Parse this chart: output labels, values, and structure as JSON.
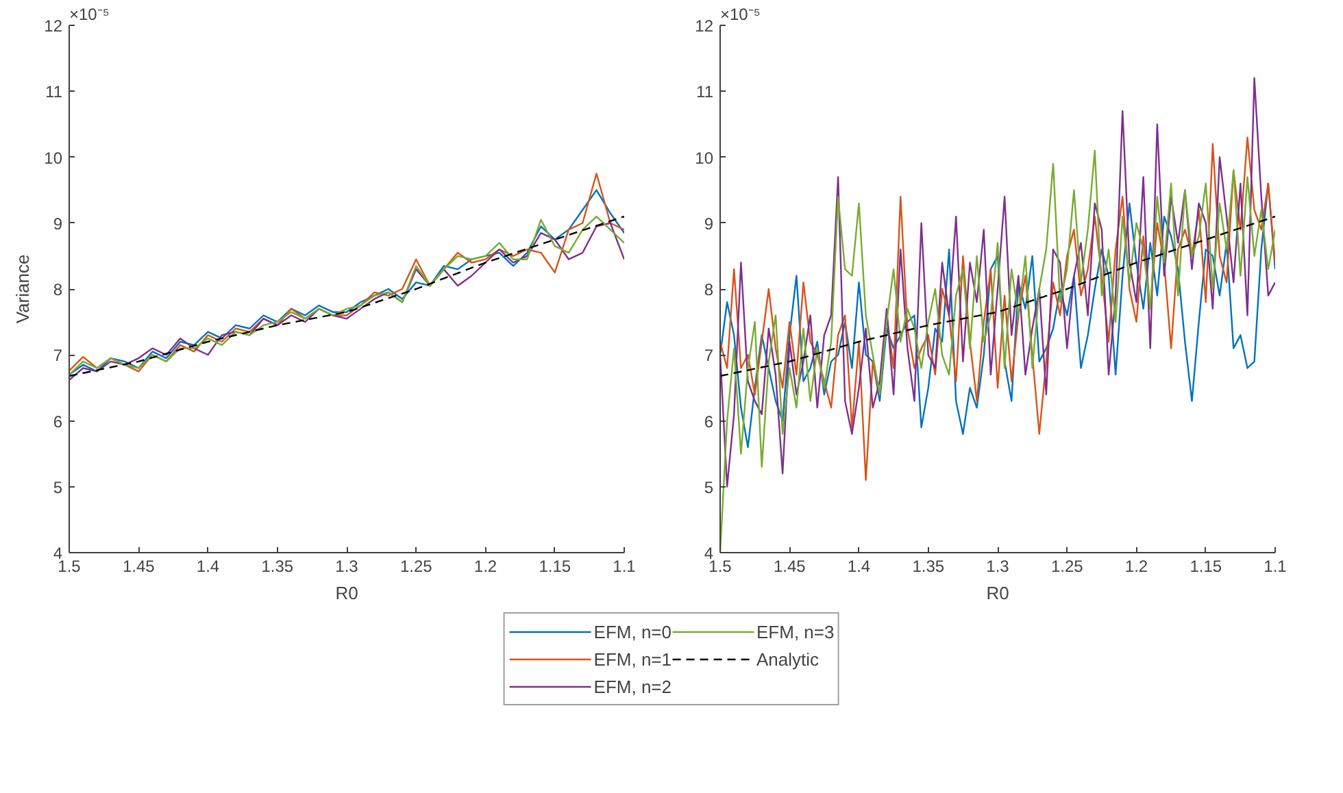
{
  "chart_data": [
    {
      "type": "line",
      "ylabel": "Variance",
      "xlabel": "R0",
      "xlim": [
        1.5,
        1.1
      ],
      "xticks": [
        1.5,
        1.45,
        1.4,
        1.35,
        1.3,
        1.25,
        1.2,
        1.15,
        1.1
      ],
      "ylim": [
        4,
        12
      ],
      "yticks": [
        4,
        5,
        6,
        7,
        8,
        9,
        10,
        11,
        12
      ],
      "annotations": [
        "×10⁻⁵"
      ],
      "grid": false,
      "legend": "bottom",
      "marker": "none",
      "x": [
        1.5,
        1.49,
        1.48,
        1.47,
        1.46,
        1.45,
        1.44,
        1.43,
        1.42,
        1.41,
        1.4,
        1.39,
        1.38,
        1.37,
        1.36,
        1.35,
        1.34,
        1.33,
        1.32,
        1.31,
        1.3,
        1.29,
        1.28,
        1.27,
        1.26,
        1.25,
        1.24,
        1.23,
        1.22,
        1.21,
        1.2,
        1.19,
        1.18,
        1.17,
        1.16,
        1.15,
        1.14,
        1.13,
        1.12,
        1.11,
        1.1
      ],
      "series": [
        {
          "name": "EFM, n=0",
          "color": "#0072bd",
          "values": [
            6.7,
            6.85,
            6.75,
            6.95,
            6.9,
            6.8,
            7.05,
            6.95,
            7.2,
            7.15,
            7.35,
            7.25,
            7.45,
            7.4,
            7.6,
            7.5,
            7.7,
            7.6,
            7.75,
            7.65,
            7.65,
            7.8,
            7.9,
            8.0,
            7.85,
            8.1,
            8.05,
            8.35,
            8.3,
            8.45,
            8.5,
            8.55,
            8.35,
            8.55,
            8.95,
            8.75,
            8.9,
            9.2,
            9.5,
            9.15,
            8.85
          ]
        },
        {
          "name": "EFM, n=1",
          "color": "#d95319",
          "values": [
            6.76,
            6.97,
            6.8,
            6.95,
            6.85,
            6.75,
            7.0,
            6.9,
            7.15,
            7.05,
            7.3,
            7.2,
            7.4,
            7.35,
            7.55,
            7.45,
            7.7,
            7.55,
            7.7,
            7.6,
            7.6,
            7.75,
            7.95,
            7.9,
            8.0,
            8.45,
            8.05,
            8.3,
            8.55,
            8.4,
            8.45,
            8.6,
            8.5,
            8.6,
            8.55,
            8.25,
            8.9,
            9.0,
            9.75,
            9.0,
            8.9
          ]
        },
        {
          "name": "EFM, n=2",
          "color": "#7e2f8e",
          "values": [
            6.62,
            6.8,
            6.75,
            6.9,
            6.85,
            6.95,
            7.1,
            7.0,
            7.25,
            7.1,
            7.0,
            7.3,
            7.35,
            7.3,
            7.55,
            7.45,
            7.6,
            7.5,
            7.7,
            7.6,
            7.55,
            7.7,
            7.85,
            7.95,
            7.8,
            8.3,
            8.05,
            8.3,
            8.05,
            8.2,
            8.4,
            8.6,
            8.4,
            8.5,
            8.85,
            8.75,
            8.45,
            8.55,
            8.95,
            9.0,
            8.45
          ]
        },
        {
          "name": "EFM, n=3",
          "color": "#77ac30",
          "values": [
            6.7,
            6.9,
            6.8,
            6.95,
            6.85,
            6.8,
            7.0,
            6.9,
            7.1,
            7.1,
            7.25,
            7.15,
            7.35,
            7.3,
            7.45,
            7.5,
            7.65,
            7.55,
            7.7,
            7.6,
            7.7,
            7.75,
            7.9,
            7.95,
            7.8,
            8.35,
            8.05,
            8.3,
            8.5,
            8.45,
            8.5,
            8.7,
            8.45,
            8.45,
            9.05,
            8.65,
            8.55,
            8.9,
            9.1,
            8.9,
            8.7
          ]
        },
        {
          "name": "Analytic",
          "color": "#000000",
          "line_style": "dashed",
          "x": [
            1.5,
            1.45,
            1.4,
            1.35,
            1.3,
            1.25,
            1.2,
            1.15,
            1.1
          ],
          "values": [
            6.68,
            6.9,
            7.2,
            7.45,
            7.65,
            8.0,
            8.4,
            8.75,
            9.1
          ]
        }
      ]
    },
    {
      "type": "line",
      "xlabel": "R0",
      "xlim": [
        1.5,
        1.1
      ],
      "xticks": [
        1.5,
        1.45,
        1.4,
        1.35,
        1.3,
        1.25,
        1.2,
        1.15,
        1.1
      ],
      "ylim": [
        4,
        12
      ],
      "yticks": [
        4,
        5,
        6,
        7,
        8,
        9,
        10,
        11,
        12
      ],
      "annotations": [
        "×10⁻⁵"
      ],
      "grid": false,
      "marker": "none",
      "x": [
        1.5,
        1.495,
        1.49,
        1.485,
        1.48,
        1.475,
        1.47,
        1.465,
        1.46,
        1.455,
        1.45,
        1.445,
        1.44,
        1.435,
        1.43,
        1.425,
        1.42,
        1.415,
        1.41,
        1.405,
        1.4,
        1.395,
        1.39,
        1.385,
        1.38,
        1.375,
        1.37,
        1.365,
        1.36,
        1.355,
        1.35,
        1.345,
        1.34,
        1.335,
        1.33,
        1.325,
        1.32,
        1.315,
        1.31,
        1.305,
        1.3,
        1.295,
        1.29,
        1.285,
        1.28,
        1.275,
        1.27,
        1.265,
        1.26,
        1.255,
        1.25,
        1.245,
        1.24,
        1.235,
        1.23,
        1.225,
        1.22,
        1.215,
        1.21,
        1.205,
        1.2,
        1.195,
        1.19,
        1.185,
        1.18,
        1.175,
        1.17,
        1.165,
        1.16,
        1.155,
        1.15,
        1.145,
        1.14,
        1.135,
        1.13,
        1.125,
        1.12,
        1.115,
        1.11,
        1.105,
        1.1
      ],
      "series": [
        {
          "color": "#0072bd",
          "values": [
            7.0,
            7.8,
            7.3,
            6.2,
            5.6,
            6.5,
            7.3,
            6.8,
            6.3,
            6.0,
            7.3,
            8.2,
            6.6,
            6.8,
            7.2,
            6.4,
            6.9,
            7.0,
            7.5,
            6.8,
            8.1,
            7.0,
            6.9,
            6.3,
            7.4,
            7.1,
            7.3,
            7.5,
            7.6,
            5.9,
            6.5,
            7.4,
            7.2,
            8.6,
            6.3,
            5.8,
            6.5,
            6.2,
            7.0,
            8.3,
            8.5,
            6.9,
            6.3,
            8.1,
            7.7,
            8.5,
            6.9,
            7.1,
            7.4,
            8.0,
            7.6,
            8.2,
            6.8,
            7.3,
            8.0,
            8.6,
            8.2,
            6.7,
            8.2,
            9.3,
            8.4,
            7.7,
            8.7,
            7.9,
            9.1,
            8.8,
            8.3,
            7.2,
            6.3,
            7.5,
            8.6,
            8.5,
            7.9,
            8.7,
            7.1,
            7.3,
            6.8,
            6.9,
            8.6,
            9.6,
            8.3
          ]
        },
        {
          "color": "#d95319",
          "values": [
            7.2,
            6.8,
            8.3,
            6.8,
            7.0,
            6.4,
            7.2,
            8.0,
            7.1,
            6.5,
            7.5,
            6.7,
            8.1,
            7.2,
            7.0,
            6.6,
            6.2,
            7.3,
            7.6,
            5.9,
            7.2,
            5.1,
            6.9,
            6.4,
            7.6,
            6.8,
            9.4,
            7.4,
            6.8,
            7.1,
            7.3,
            6.7,
            8.0,
            7.6,
            6.6,
            8.5,
            7.2,
            6.3,
            7.5,
            8.3,
            6.5,
            7.9,
            6.6,
            7.6,
            8.2,
            7.0,
            5.8,
            6.9,
            8.1,
            7.6,
            8.5,
            8.9,
            7.9,
            8.3,
            9.1,
            8.2,
            7.2,
            8.6,
            9.4,
            8.0,
            7.5,
            8.8,
            7.7,
            9.0,
            8.4,
            7.1,
            8.6,
            8.9,
            8.5,
            9.2,
            7.8,
            10.2,
            8.5,
            8.1,
            9.8,
            8.9,
            10.3,
            9.2,
            8.9,
            9.6,
            8.4
          ]
        },
        {
          "color": "#7e2f8e",
          "values": [
            7.0,
            5.0,
            6.1,
            8.4,
            6.6,
            6.3,
            6.1,
            7.4,
            6.7,
            5.2,
            7.2,
            6.4,
            6.9,
            7.6,
            6.2,
            7.3,
            7.6,
            9.7,
            6.3,
            5.8,
            6.5,
            7.4,
            6.2,
            6.6,
            7.7,
            6.4,
            8.6,
            7.1,
            6.3,
            9.0,
            7.0,
            6.8,
            8.4,
            7.6,
            9.1,
            6.9,
            8.4,
            7.8,
            8.9,
            6.7,
            8.0,
            9.4,
            7.3,
            8.2,
            6.7,
            7.4,
            8.0,
            6.4,
            8.6,
            8.4,
            7.1,
            8.2,
            8.7,
            7.6,
            9.3,
            8.9,
            6.7,
            7.9,
            10.7,
            8.4,
            7.8,
            9.7,
            7.1,
            10.5,
            8.2,
            9.4,
            8.7,
            9.5,
            8.3,
            9.3,
            9.0,
            7.7,
            10.0,
            9.1,
            8.1,
            9.6,
            7.6,
            11.2,
            9.4,
            7.9,
            8.1
          ]
        },
        {
          "color": "#77ac30",
          "values": [
            4.0,
            6.0,
            7.1,
            5.5,
            6.8,
            7.5,
            5.3,
            6.9,
            7.6,
            5.8,
            6.8,
            6.2,
            7.4,
            6.3,
            7.1,
            6.5,
            7.2,
            9.4,
            8.3,
            8.2,
            9.3,
            7.6,
            7.0,
            6.4,
            7.5,
            8.3,
            7.2,
            7.7,
            7.4,
            6.8,
            7.5,
            8.0,
            7.0,
            6.7,
            7.9,
            8.3,
            7.1,
            8.5,
            7.2,
            7.6,
            8.7,
            6.8,
            8.3,
            7.6,
            8.5,
            6.8,
            8.0,
            8.6,
            9.9,
            7.8,
            8.3,
            9.5,
            8.1,
            8.9,
            10.1,
            7.9,
            8.6,
            7.5,
            9.1,
            8.1,
            9.0,
            8.6,
            7.7,
            9.4,
            8.4,
            9.6,
            7.9,
            9.5,
            8.5,
            8.8,
            9.6,
            8.0,
            9.3,
            8.6,
            9.8,
            8.2,
            9.7,
            8.5,
            9.2,
            8.3,
            8.9
          ]
        },
        {
          "color": "#000000",
          "line_style": "dashed",
          "x": [
            1.5,
            1.45,
            1.4,
            1.35,
            1.3,
            1.25,
            1.2,
            1.15,
            1.1
          ],
          "values": [
            6.68,
            6.9,
            7.2,
            7.45,
            7.65,
            8.0,
            8.4,
            8.75,
            9.1
          ]
        }
      ]
    }
  ]
}
